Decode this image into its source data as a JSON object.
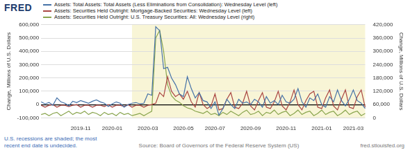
{
  "chart_data": {
    "type": "line",
    "logo": "FRED",
    "legend": "top-left",
    "grid": true,
    "footnote": "U.S. recessions are shaded; the most recent end date is undecided.",
    "source": "Source: Board of Governors of the Federal Reserve System (US)",
    "site": "fred.stlouisfed.org",
    "y_label": "Change, Millions of U.S. Dollars",
    "y2_label": "Change, Millions of U.S. Dollars",
    "recession": {
      "start_index": 23,
      "end_index": 82
    },
    "categories": [
      null,
      null,
      null,
      null,
      null,
      null,
      null,
      null,
      null,
      null,
      "2019-11",
      null,
      null,
      null,
      null,
      null,
      null,
      null,
      "2020-01",
      null,
      null,
      null,
      null,
      null,
      null,
      null,
      null,
      "2020-03",
      null,
      null,
      null,
      null,
      null,
      null,
      null,
      null,
      "2020-05",
      null,
      null,
      null,
      null,
      null,
      null,
      null,
      "2020-07",
      null,
      null,
      null,
      null,
      null,
      null,
      null,
      null,
      "2020-09",
      null,
      null,
      null,
      null,
      null,
      null,
      null,
      null,
      "2020-11",
      null,
      null,
      null,
      null,
      null,
      null,
      null,
      null,
      "2021-01",
      null,
      null,
      null,
      null,
      null,
      null,
      null,
      "2021-03",
      null,
      null,
      null
    ],
    "ylim": [
      -100000,
      600000
    ],
    "yticks": [
      {
        "value": -100000,
        "label": "-100,000"
      },
      0,
      {
        "value": 100000,
        "label": "100,000"
      },
      {
        "value": 200000,
        "label": "200,000"
      },
      {
        "value": 300000,
        "label": "300,000"
      },
      {
        "value": 400000,
        "label": "400,000"
      },
      {
        "value": 500000,
        "label": "500,000"
      },
      {
        "value": 600000,
        "label": "600,000"
      }
    ],
    "y2lim": [
      0,
      420000
    ],
    "y2ticks": [
      0,
      {
        "value": 60000,
        "label": "60,000"
      },
      {
        "value": 120000,
        "label": "120,000"
      },
      {
        "value": 180000,
        "label": "180,000"
      },
      {
        "value": 240000,
        "label": "240,000"
      },
      {
        "value": 300000,
        "label": "300,000"
      },
      {
        "value": 360000,
        "label": "360,000"
      },
      {
        "value": 420000,
        "label": "420,000"
      }
    ],
    "series": [
      {
        "name": "Assets: Total Assets: Total Assets (Less Eliminations from Consolidation): Wednesday Level (left)",
        "color": "#4572a7",
        "values": [
          20000,
          5000,
          15000,
          -5000,
          50000,
          20000,
          10000,
          -10000,
          25000,
          15000,
          30000,
          20000,
          10000,
          25000,
          35000,
          20000,
          10000,
          -15000,
          5000,
          20000,
          10000,
          -20000,
          0,
          10000,
          15000,
          5000,
          10000,
          80000,
          70000,
          585000,
          555000,
          270000,
          280000,
          200000,
          150000,
          80000,
          60000,
          210000,
          120000,
          50000,
          90000,
          30000,
          20000,
          -30000,
          20000,
          -80000,
          -30000,
          40000,
          0,
          -30000,
          40000,
          10000,
          20000,
          0,
          40000,
          20000,
          -20000,
          60000,
          10000,
          30000,
          0,
          70000,
          20000,
          10000,
          40000,
          120000,
          20000,
          -20000,
          50000,
          30000,
          80000,
          0,
          -20000,
          60000,
          20000,
          110000,
          30000,
          -10000,
          40000,
          110000,
          30000,
          10000,
          -30000
        ]
      },
      {
        "name": "Assets: Securities Held Outright: Mortgage-Backed Securities: Wednesday Level (left)",
        "color": "#aa4643",
        "values": [
          -5000,
          -20000,
          -5000,
          0,
          -20000,
          -5000,
          -5000,
          -15000,
          -5000,
          0,
          -20000,
          -5000,
          -5000,
          -20000,
          -5000,
          -5000,
          -15000,
          0,
          -20000,
          -5000,
          -5000,
          -15000,
          0,
          -20000,
          -5000,
          -5000,
          -20000,
          -5000,
          0,
          10000,
          90000,
          60000,
          210000,
          100000,
          60000,
          80000,
          40000,
          100000,
          20000,
          -20000,
          90000,
          0,
          -30000,
          -10000,
          80000,
          -40000,
          -30000,
          40000,
          90000,
          -20000,
          -30000,
          10000,
          100000,
          -10000,
          -40000,
          30000,
          90000,
          -20000,
          -30000,
          20000,
          100000,
          -10000,
          -40000,
          20000,
          110000,
          0,
          -40000,
          30000,
          80000,
          100000,
          -20000,
          -30000,
          50000,
          110000,
          -10000,
          -40000,
          40000,
          110000,
          -20000,
          -30000,
          60000,
          110000,
          -20000
        ]
      },
      {
        "name": "Assets: Securities Held Outright: U.S. Treasury Securities: All: Wednesday Level (right)",
        "color": "#89a54e",
        "axis": "y2",
        "values": [
          15000,
          20000,
          10000,
          20000,
          25000,
          10000,
          20000,
          30000,
          15000,
          25000,
          20000,
          30000,
          15000,
          25000,
          20000,
          10000,
          25000,
          15000,
          20000,
          10000,
          25000,
          15000,
          20000,
          10000,
          15000,
          20000,
          10000,
          20000,
          30000,
          360000,
          395000,
          300000,
          150000,
          100000,
          80000,
          70000,
          55000,
          45000,
          40000,
          30000,
          25000,
          20000,
          30000,
          15000,
          20000,
          10000,
          25000,
          15000,
          30000,
          20000,
          10000,
          25000,
          35000,
          15000,
          20000,
          30000,
          10000,
          25000,
          20000,
          35000,
          15000,
          25000,
          30000,
          10000,
          20000,
          35000,
          15000,
          25000,
          30000,
          10000,
          20000,
          35000,
          15000,
          25000,
          30000,
          10000,
          20000,
          35000,
          15000,
          25000,
          30000,
          10000,
          20000
        ]
      }
    ]
  }
}
